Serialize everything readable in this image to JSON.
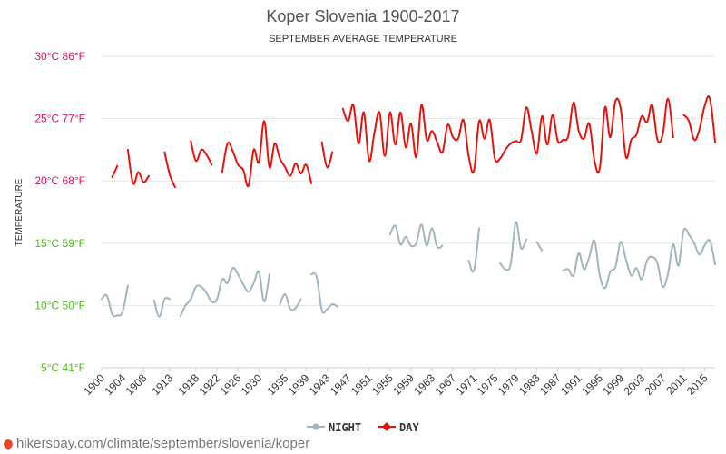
{
  "chart_data": {
    "type": "line",
    "title": "Koper Slovenia 1900-2017",
    "subtitle": "SEPTEMBER AVERAGE TEMPERATURE",
    "ylabel": "TEMPERATURE",
    "ylim": [
      5,
      30
    ],
    "xlim": [
      1900,
      2017
    ],
    "y_ticks": [
      {
        "value": 30,
        "label": "30°C 86°F",
        "color": "#e0115f"
      },
      {
        "value": 25,
        "label": "25°C 77°F",
        "color": "#e0115f"
      },
      {
        "value": 20,
        "label": "20°C 68°F",
        "color": "#e0115f"
      },
      {
        "value": 15,
        "label": "15°C 59°F",
        "color": "#4cbb17"
      },
      {
        "value": 10,
        "label": "10°C 50°F",
        "color": "#4cbb17"
      },
      {
        "value": 5,
        "label": "5°C 41°F",
        "color": "#4cbb17"
      }
    ],
    "x_tick_labels": [
      1900,
      1904,
      1908,
      1913,
      1918,
      1922,
      1926,
      1930,
      1935,
      1939,
      1943,
      1947,
      1951,
      1955,
      1959,
      1963,
      1967,
      1971,
      1975,
      1979,
      1983,
      1987,
      1991,
      1995,
      1999,
      2003,
      2007,
      2011,
      2015
    ],
    "legend": {
      "position": "bottom"
    },
    "series": [
      {
        "name": "NIGHT",
        "color": "#9fb5bf",
        "segments": [
          [
            [
              1900,
              10.5
            ],
            [
              1901,
              10.8
            ],
            [
              1902,
              9.3
            ],
            [
              1903,
              9.2
            ],
            [
              1904,
              9.5
            ],
            [
              1905,
              11.6
            ]
          ],
          [
            [
              1910,
              10.4
            ],
            [
              1911,
              9.1
            ],
            [
              1912,
              10.5
            ],
            [
              1913,
              10.5
            ]
          ],
          [
            [
              1915,
              9.1
            ],
            [
              1916,
              10.0
            ],
            [
              1917,
              10.5
            ],
            [
              1918,
              11.5
            ],
            [
              1919,
              11.5
            ],
            [
              1920,
              11.0
            ],
            [
              1921,
              10.3
            ],
            [
              1922,
              10.5
            ],
            [
              1923,
              12.1
            ],
            [
              1924,
              11.8
            ],
            [
              1925,
              13.0
            ],
            [
              1926,
              12.5
            ],
            [
              1927,
              11.7
            ],
            [
              1928,
              11.1
            ],
            [
              1929,
              11.8
            ],
            [
              1930,
              12.7
            ],
            [
              1931,
              10.3
            ],
            [
              1932,
              12.5
            ]
          ],
          [
            [
              1934,
              10.1
            ],
            [
              1935,
              10.9
            ],
            [
              1936,
              9.7
            ],
            [
              1937,
              9.8
            ],
            [
              1938,
              10.5
            ]
          ],
          [
            [
              1940,
              12.5
            ],
            [
              1941,
              12.3
            ],
            [
              1942,
              9.6
            ],
            [
              1943,
              9.7
            ],
            [
              1944,
              10.1
            ],
            [
              1945,
              9.9
            ]
          ],
          [
            [
              1955,
              15.7
            ],
            [
              1956,
              16.4
            ],
            [
              1957,
              14.9
            ],
            [
              1958,
              15.5
            ],
            [
              1959,
              14.8
            ],
            [
              1960,
              15.0
            ],
            [
              1961,
              16.5
            ],
            [
              1962,
              14.8
            ],
            [
              1963,
              16.2
            ],
            [
              1964,
              14.7
            ],
            [
              1965,
              14.8
            ]
          ],
          [
            [
              1970,
              13.6
            ],
            [
              1971,
              12.8
            ],
            [
              1972,
              16.2
            ]
          ],
          [
            [
              1976,
              13.4
            ],
            [
              1977,
              12.9
            ],
            [
              1978,
              13.3
            ],
            [
              1979,
              16.7
            ],
            [
              1980,
              14.6
            ],
            [
              1981,
              15.3
            ]
          ],
          [
            [
              1983,
              15.1
            ],
            [
              1984,
              14.4
            ]
          ],
          [
            [
              1988,
              12.8
            ],
            [
              1989,
              12.9
            ],
            [
              1990,
              12.4
            ],
            [
              1991,
              14.2
            ],
            [
              1992,
              12.9
            ],
            [
              1993,
              13.9
            ],
            [
              1994,
              15.2
            ],
            [
              1995,
              12.4
            ],
            [
              1996,
              11.4
            ],
            [
              1997,
              12.7
            ],
            [
              1998,
              13.1
            ],
            [
              1999,
              15.1
            ],
            [
              2000,
              13.7
            ],
            [
              2001,
              12.4
            ],
            [
              2002,
              13.0
            ],
            [
              2003,
              12.1
            ],
            [
              2004,
              13.6
            ],
            [
              2005,
              13.9
            ],
            [
              2006,
              13.4
            ],
            [
              2007,
              11.5
            ],
            [
              2008,
              12.5
            ],
            [
              2009,
              14.9
            ],
            [
              2010,
              13.2
            ],
            [
              2011,
              16.0
            ],
            [
              2012,
              15.7
            ],
            [
              2013,
              15.0
            ],
            [
              2014,
              14.1
            ],
            [
              2015,
              14.8
            ],
            [
              2016,
              15.2
            ],
            [
              2017,
              13.3
            ]
          ]
        ]
      },
      {
        "name": "DAY",
        "color": "#e8120c",
        "segments": [
          [
            [
              1902,
              20.3
            ],
            [
              1903,
              21.2
            ]
          ],
          [
            [
              1905,
              22.5
            ],
            [
              1906,
              19.8
            ],
            [
              1907,
              20.7
            ],
            [
              1908,
              19.9
            ],
            [
              1909,
              20.4
            ]
          ],
          [
            [
              1912,
              22.3
            ],
            [
              1913,
              20.5
            ],
            [
              1914,
              19.5
            ]
          ],
          [
            [
              1917,
              23.2
            ],
            [
              1918,
              21.6
            ],
            [
              1919,
              22.5
            ],
            [
              1920,
              22.1
            ],
            [
              1921,
              21.3
            ]
          ],
          [
            [
              1923,
              20.7
            ],
            [
              1924,
              23.0
            ],
            [
              1925,
              22.4
            ],
            [
              1926,
              21.3
            ],
            [
              1927,
              20.9
            ],
            [
              1928,
              19.6
            ],
            [
              1929,
              22.5
            ],
            [
              1930,
              21.5
            ],
            [
              1931,
              24.8
            ],
            [
              1932,
              21.1
            ],
            [
              1933,
              23.0
            ],
            [
              1934,
              21.8
            ],
            [
              1935,
              21.1
            ],
            [
              1936,
              20.4
            ],
            [
              1937,
              21.4
            ],
            [
              1938,
              20.6
            ],
            [
              1939,
              21.3
            ],
            [
              1940,
              19.8
            ]
          ],
          [
            [
              1942,
              23.1
            ],
            [
              1943,
              21.1
            ],
            [
              1944,
              22.3
            ]
          ],
          [
            [
              1946,
              25.8
            ],
            [
              1947,
              24.8
            ],
            [
              1948,
              26.1
            ],
            [
              1949,
              23.0
            ],
            [
              1950,
              25.5
            ],
            [
              1951,
              21.6
            ],
            [
              1952,
              23.8
            ],
            [
              1953,
              25.5
            ],
            [
              1954,
              22.0
            ],
            [
              1955,
              25.5
            ],
            [
              1956,
              22.9
            ],
            [
              1957,
              25.5
            ],
            [
              1958,
              22.7
            ],
            [
              1959,
              24.6
            ],
            [
              1960,
              21.9
            ],
            [
              1961,
              26.1
            ],
            [
              1962,
              23.3
            ],
            [
              1963,
              24.0
            ],
            [
              1964,
              23.1
            ],
            [
              1965,
              22.3
            ],
            [
              1966,
              24.5
            ],
            [
              1967,
              23.5
            ],
            [
              1968,
              23.4
            ],
            [
              1969,
              24.9
            ],
            [
              1970,
              22.0
            ],
            [
              1971,
              20.8
            ],
            [
              1972,
              24.8
            ],
            [
              1973,
              23.4
            ],
            [
              1974,
              24.9
            ],
            [
              1975,
              21.8
            ],
            [
              1976,
              21.8
            ],
            [
              1977,
              22.5
            ],
            [
              1978,
              23.0
            ],
            [
              1979,
              23.2
            ],
            [
              1980,
              23.3
            ],
            [
              1981,
              25.9
            ],
            [
              1982,
              24.0
            ],
            [
              1983,
              22.2
            ],
            [
              1984,
              25.2
            ],
            [
              1985,
              22.9
            ],
            [
              1986,
              25.3
            ],
            [
              1987,
              23.2
            ],
            [
              1988,
              23.3
            ],
            [
              1989,
              23.6
            ],
            [
              1990,
              26.3
            ],
            [
              1991,
              24.0
            ],
            [
              1992,
              23.4
            ],
            [
              1993,
              24.6
            ],
            [
              1994,
              21.6
            ],
            [
              1995,
              21.0
            ],
            [
              1996,
              25.9
            ],
            [
              1997,
              23.5
            ],
            [
              1998,
              26.4
            ],
            [
              1999,
              25.8
            ],
            [
              2000,
              21.9
            ],
            [
              2001,
              23.3
            ],
            [
              2002,
              23.7
            ],
            [
              2003,
              25.2
            ],
            [
              2004,
              24.7
            ],
            [
              2005,
              26.1
            ],
            [
              2006,
              23.3
            ],
            [
              2007,
              23.7
            ],
            [
              2008,
              26.6
            ],
            [
              2009,
              23.5
            ]
          ],
          [
            [
              2011,
              25.3
            ],
            [
              2012,
              24.8
            ],
            [
              2013,
              23.3
            ],
            [
              2014,
              24.1
            ],
            [
              2015,
              26.0
            ],
            [
              2016,
              26.6
            ],
            [
              2017,
              23.1
            ]
          ]
        ]
      }
    ]
  },
  "footer": {
    "url": "hikersbay.com/climate/september/slovenia/koper"
  }
}
